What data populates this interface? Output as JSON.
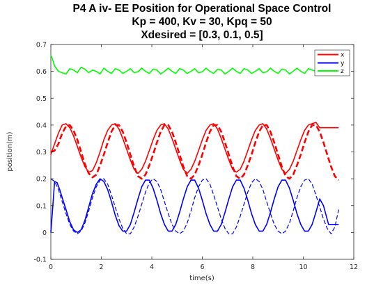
{
  "chart_data": {
    "type": "line",
    "title_lines": [
      "P4 A iv- EE Position for Operational Space Control",
      "Kp = 400, Kv = 30, Kpq = 50",
      "Xdesired = [0.3, 0.1, 0.5]"
    ],
    "xlabel": "time(s)",
    "ylabel": "position(m)",
    "xlim": [
      0,
      12
    ],
    "ylim": [
      -0.1,
      0.7
    ],
    "xticks": [
      "0",
      "2",
      "4",
      "6",
      "8",
      "10",
      "12"
    ],
    "yticks": [
      "-0.1",
      "0",
      "0.1",
      "0.2",
      "0.3",
      "0.4",
      "0.5",
      "0.6",
      "0.7"
    ],
    "grid": false,
    "legend_position": "top-right",
    "legend": [
      {
        "label": "x",
        "color": "#ff0000"
      },
      {
        "label": "y",
        "color": "#0000ff"
      },
      {
        "label": "z",
        "color": "#00ff00"
      }
    ],
    "series": [
      {
        "name": "x",
        "style": "solid",
        "color": "#ff0000",
        "x": [
          0,
          0.15,
          0.3,
          0.45,
          0.6,
          0.75,
          0.9,
          1.05,
          1.2,
          1.35,
          1.5,
          1.65,
          1.8,
          1.95,
          2.1,
          2.25,
          2.4,
          2.55,
          2.7,
          2.85,
          3.0,
          3.15,
          3.3,
          3.45,
          3.6,
          3.75,
          3.9,
          4.05,
          4.2,
          4.35,
          4.5,
          4.65,
          4.8,
          4.95,
          5.1,
          5.25,
          5.4,
          5.55,
          5.7,
          5.85,
          6.0,
          6.15,
          6.3,
          6.45,
          6.6,
          6.75,
          6.9,
          7.05,
          7.2,
          7.35,
          7.5,
          7.65,
          7.8,
          7.95,
          8.1,
          8.25,
          8.4,
          8.55,
          8.7,
          8.85,
          9.0,
          9.15,
          9.3,
          9.45,
          9.6,
          9.75,
          9.9,
          10.05,
          10.2,
          10.35,
          10.5,
          10.65,
          10.8,
          11.0,
          11.2,
          11.4
        ],
        "values": [
          0.29,
          0.33,
          0.37,
          0.4,
          0.405,
          0.39,
          0.36,
          0.32,
          0.28,
          0.245,
          0.225,
          0.23,
          0.26,
          0.3,
          0.345,
          0.38,
          0.4,
          0.405,
          0.385,
          0.35,
          0.31,
          0.27,
          0.235,
          0.22,
          0.235,
          0.265,
          0.305,
          0.345,
          0.38,
          0.4,
          0.405,
          0.385,
          0.35,
          0.31,
          0.27,
          0.235,
          0.22,
          0.235,
          0.265,
          0.305,
          0.345,
          0.38,
          0.4,
          0.405,
          0.385,
          0.35,
          0.31,
          0.27,
          0.235,
          0.225,
          0.235,
          0.265,
          0.305,
          0.345,
          0.38,
          0.4,
          0.405,
          0.385,
          0.35,
          0.31,
          0.27,
          0.235,
          0.22,
          0.235,
          0.265,
          0.305,
          0.345,
          0.38,
          0.4,
          0.405,
          0.41,
          0.39,
          0.39,
          0.39,
          0.39,
          0.39
        ]
      },
      {
        "name": "x desired",
        "style": "dashed",
        "color": "#ff0000",
        "x": [
          0,
          0.15,
          0.3,
          0.45,
          0.6,
          0.75,
          0.9,
          1.05,
          1.2,
          1.35,
          1.5,
          1.65,
          1.8,
          1.95,
          2.1,
          2.25,
          2.4,
          2.55,
          2.7,
          2.85,
          3.0,
          3.15,
          3.3,
          3.45,
          3.6,
          3.75,
          3.9,
          4.05,
          4.2,
          4.35,
          4.5,
          4.65,
          4.8,
          4.95,
          5.1,
          5.25,
          5.4,
          5.55,
          5.7,
          5.85,
          6.0,
          6.15,
          6.3,
          6.45,
          6.6,
          6.75,
          6.9,
          7.05,
          7.2,
          7.35,
          7.5,
          7.65,
          7.8,
          7.95,
          8.1,
          8.25,
          8.4,
          8.55,
          8.7,
          8.85,
          9.0,
          9.15,
          9.3,
          9.45,
          9.6,
          9.75,
          9.9,
          10.05,
          10.2,
          10.35,
          10.5,
          10.65,
          10.8,
          10.95,
          11.1,
          11.25,
          11.4
        ],
        "values": [
          0.3,
          0.305,
          0.33,
          0.37,
          0.395,
          0.4,
          0.38,
          0.345,
          0.3,
          0.255,
          0.22,
          0.205,
          0.215,
          0.25,
          0.29,
          0.335,
          0.375,
          0.4,
          0.4,
          0.375,
          0.335,
          0.29,
          0.245,
          0.21,
          0.2,
          0.215,
          0.25,
          0.29,
          0.335,
          0.375,
          0.4,
          0.4,
          0.375,
          0.335,
          0.29,
          0.245,
          0.21,
          0.2,
          0.215,
          0.25,
          0.29,
          0.335,
          0.375,
          0.4,
          0.4,
          0.375,
          0.335,
          0.29,
          0.245,
          0.21,
          0.2,
          0.215,
          0.25,
          0.29,
          0.335,
          0.375,
          0.4,
          0.4,
          0.375,
          0.335,
          0.29,
          0.245,
          0.21,
          0.2,
          0.215,
          0.25,
          0.29,
          0.335,
          0.375,
          0.4,
          0.4,
          0.375,
          0.335,
          0.29,
          0.245,
          0.21,
          0.195
        ]
      },
      {
        "name": "y",
        "style": "solid",
        "color": "#0000ff",
        "x": [
          0,
          0.08,
          0.15,
          0.25,
          0.35,
          0.45,
          0.6,
          0.75,
          0.9,
          1.05,
          1.2,
          1.35,
          1.5,
          1.65,
          1.8,
          1.95,
          2.1,
          2.25,
          2.4,
          2.55,
          2.7,
          2.85,
          3.0,
          3.15,
          3.3,
          3.45,
          3.6,
          3.75,
          3.9,
          4.05,
          4.2,
          4.35,
          4.5,
          4.65,
          4.8,
          4.95,
          5.1,
          5.25,
          5.4,
          5.55,
          5.7,
          5.85,
          6.0,
          6.15,
          6.3,
          6.45,
          6.6,
          6.75,
          6.9,
          7.05,
          7.2,
          7.35,
          7.5,
          7.65,
          7.8,
          7.95,
          8.1,
          8.25,
          8.4,
          8.55,
          8.7,
          8.85,
          9.0,
          9.15,
          9.3,
          9.45,
          9.6,
          9.75,
          9.9,
          10.05,
          10.2,
          10.35,
          10.5,
          10.65,
          10.8,
          11.0,
          11.2,
          11.4
        ],
        "values": [
          0.0,
          0.1,
          0.19,
          0.185,
          0.16,
          0.13,
          0.085,
          0.04,
          0.01,
          0.0,
          0.01,
          0.045,
          0.095,
          0.145,
          0.18,
          0.2,
          0.19,
          0.16,
          0.115,
          0.065,
          0.025,
          0.005,
          0.005,
          0.03,
          0.075,
          0.125,
          0.17,
          0.195,
          0.195,
          0.165,
          0.12,
          0.07,
          0.03,
          0.005,
          0.005,
          0.03,
          0.075,
          0.125,
          0.17,
          0.195,
          0.195,
          0.165,
          0.12,
          0.07,
          0.03,
          0.005,
          0.005,
          0.03,
          0.075,
          0.125,
          0.17,
          0.195,
          0.195,
          0.165,
          0.12,
          0.07,
          0.03,
          0.005,
          0.005,
          0.03,
          0.075,
          0.125,
          0.17,
          0.195,
          0.195,
          0.165,
          0.12,
          0.07,
          0.03,
          0.005,
          0.005,
          0.03,
          0.075,
          0.125,
          0.1,
          0.03,
          0.03,
          0.03
        ]
      },
      {
        "name": "y desired",
        "style": "dashed",
        "color": "#0000ff",
        "x": [
          0,
          0.15,
          0.3,
          0.45,
          0.6,
          0.75,
          0.9,
          1.05,
          1.2,
          1.35,
          1.5,
          1.65,
          1.8,
          1.95,
          2.1,
          2.25,
          2.4,
          2.55,
          2.7,
          2.85,
          3.0,
          3.15,
          3.3,
          3.45,
          3.6,
          3.75,
          3.9,
          4.05,
          4.2,
          4.35,
          4.5,
          4.65,
          4.8,
          4.95,
          5.1,
          5.25,
          5.4,
          5.55,
          5.7,
          5.85,
          6.0,
          6.15,
          6.3,
          6.45,
          6.6,
          6.75,
          6.9,
          7.05,
          7.2,
          7.35,
          7.5,
          7.65,
          7.8,
          7.95,
          8.1,
          8.25,
          8.4,
          8.55,
          8.7,
          8.85,
          9.0,
          9.15,
          9.3,
          9.45,
          9.6,
          9.75,
          9.9,
          10.05,
          10.2,
          10.35,
          10.5,
          10.65,
          10.8,
          10.95,
          11.1,
          11.25,
          11.4
        ],
        "values": [
          0.2,
          0.19,
          0.16,
          0.115,
          0.07,
          0.03,
          0.005,
          -0.005,
          0.005,
          0.035,
          0.08,
          0.13,
          0.17,
          0.195,
          0.2,
          0.18,
          0.14,
          0.095,
          0.05,
          0.015,
          -0.005,
          -0.005,
          0.02,
          0.06,
          0.105,
          0.15,
          0.185,
          0.2,
          0.19,
          0.16,
          0.115,
          0.07,
          0.03,
          0.005,
          -0.005,
          0.005,
          0.035,
          0.08,
          0.13,
          0.17,
          0.195,
          0.2,
          0.18,
          0.14,
          0.095,
          0.05,
          0.015,
          -0.005,
          -0.005,
          0.02,
          0.06,
          0.105,
          0.15,
          0.185,
          0.2,
          0.19,
          0.16,
          0.115,
          0.07,
          0.03,
          0.005,
          -0.005,
          0.005,
          0.035,
          0.08,
          0.13,
          0.17,
          0.195,
          0.2,
          0.18,
          0.14,
          0.095,
          0.05,
          0.015,
          -0.005,
          0.02,
          0.085
        ]
      },
      {
        "name": "z",
        "style": "solid",
        "color": "#00ff00",
        "x": [
          0,
          0.05,
          0.15,
          0.3,
          0.45,
          0.6,
          0.75,
          0.9,
          1.05,
          1.2,
          1.35,
          1.5,
          1.65,
          1.8,
          1.95,
          2.1,
          2.25,
          2.4,
          2.55,
          2.7,
          2.85,
          3.0,
          3.15,
          3.3,
          3.45,
          3.6,
          3.75,
          3.9,
          4.05,
          4.2,
          4.35,
          4.5,
          4.65,
          4.8,
          4.95,
          5.1,
          5.25,
          5.4,
          5.55,
          5.7,
          5.85,
          6.0,
          6.15,
          6.3,
          6.45,
          6.6,
          6.75,
          6.9,
          7.05,
          7.2,
          7.35,
          7.5,
          7.65,
          7.8,
          7.95,
          8.1,
          8.25,
          8.4,
          8.55,
          8.7,
          8.85,
          9.0,
          9.15,
          9.3,
          9.45,
          9.6,
          9.75,
          9.9,
          10.05,
          10.2,
          10.35,
          10.5,
          10.65,
          10.8,
          11.0,
          11.2,
          11.4
        ],
        "values": [
          0.66,
          0.65,
          0.62,
          0.6,
          0.595,
          0.59,
          0.61,
          0.605,
          0.595,
          0.615,
          0.608,
          0.595,
          0.605,
          0.6,
          0.59,
          0.612,
          0.6,
          0.592,
          0.61,
          0.605,
          0.592,
          0.6,
          0.61,
          0.595,
          0.598,
          0.612,
          0.6,
          0.592,
          0.608,
          0.605,
          0.59,
          0.6,
          0.612,
          0.6,
          0.592,
          0.61,
          0.605,
          0.592,
          0.6,
          0.61,
          0.595,
          0.598,
          0.612,
          0.6,
          0.592,
          0.608,
          0.605,
          0.59,
          0.6,
          0.612,
          0.6,
          0.592,
          0.61,
          0.605,
          0.592,
          0.6,
          0.61,
          0.595,
          0.598,
          0.612,
          0.6,
          0.592,
          0.608,
          0.605,
          0.59,
          0.6,
          0.612,
          0.6,
          0.592,
          0.61,
          0.605,
          0.6,
          0.605,
          0.61,
          0.61,
          0.61,
          0.61
        ]
      }
    ]
  }
}
